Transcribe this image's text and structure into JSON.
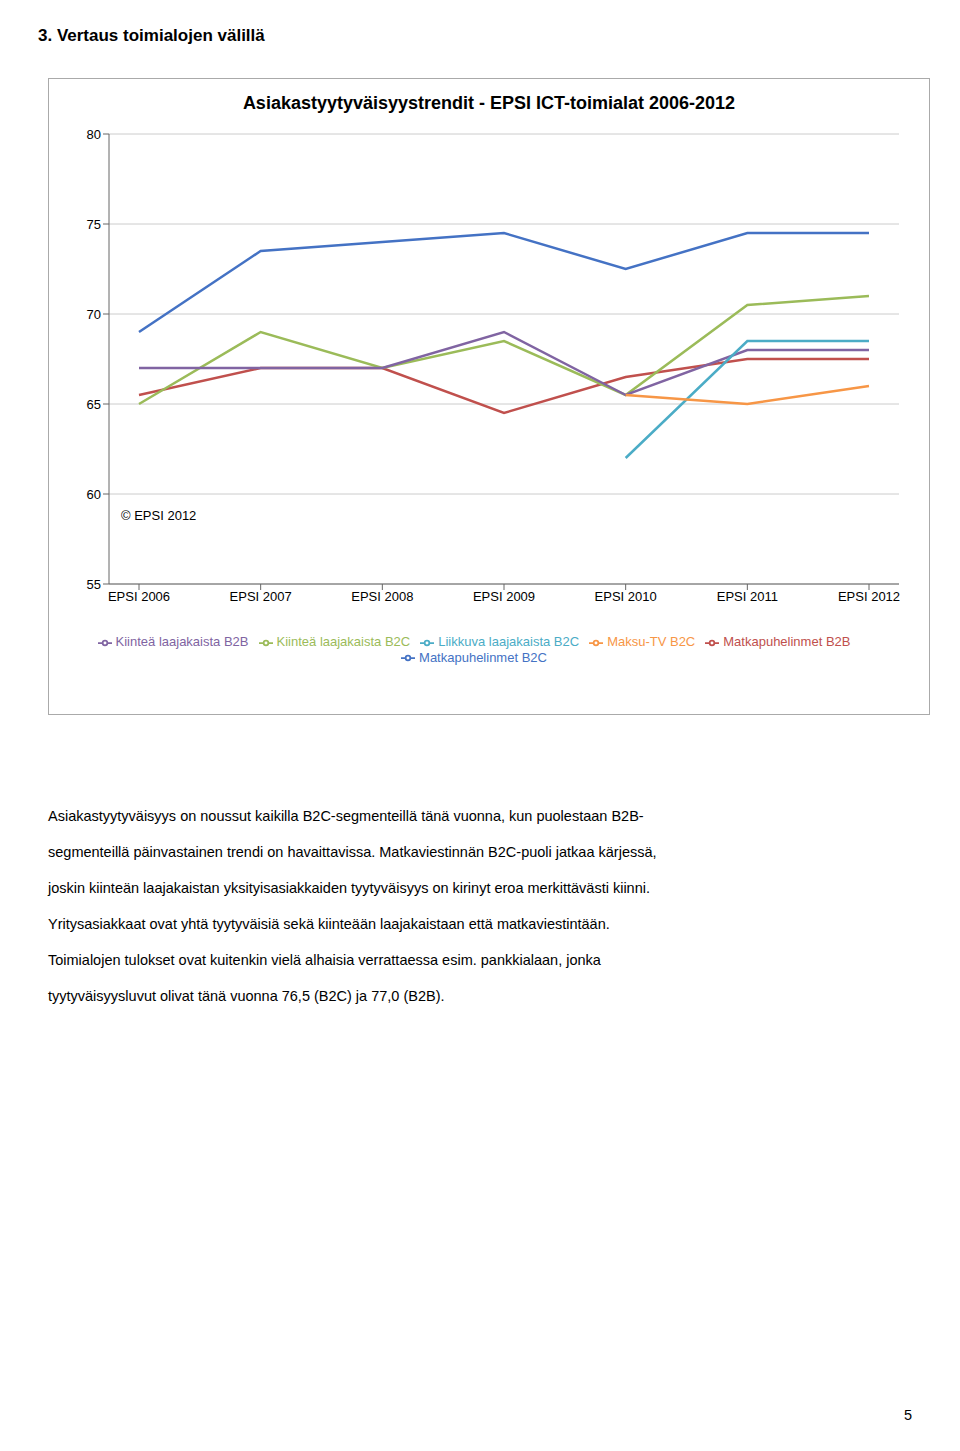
{
  "chart_data": {
    "type": "line",
    "title": "Asiakastyytyväisyystrendit - EPSI ICT-toimialat 2006-2012",
    "categories": [
      "EPSI 2006",
      "EPSI 2007",
      "EPSI 2008",
      "EPSI 2009",
      "EPSI 2010",
      "EPSI 2011",
      "EPSI 2012"
    ],
    "series": [
      {
        "name": "Matkapuhelinmet B2C",
        "color": "#4472C4",
        "values": [
          69.0,
          73.5,
          74.0,
          74.5,
          72.5,
          74.5,
          74.5
        ]
      },
      {
        "name": "Matkapuhelinmet B2B",
        "color": "#C0504D",
        "values": [
          65.5,
          67.0,
          67.0,
          64.5,
          66.5,
          67.5,
          67.5
        ]
      },
      {
        "name": "Kiinteä laajakaista B2C",
        "color": "#9BBB59",
        "values": [
          65.0,
          69.0,
          67.0,
          68.5,
          65.5,
          70.5,
          71.0
        ]
      },
      {
        "name": "Kiinteä laajakaista B2B",
        "color": "#8064A2",
        "values": [
          67.0,
          67.0,
          67.0,
          69.0,
          65.5,
          68.0,
          68.0
        ]
      },
      {
        "name": "Liikkuva laajakaista B2C",
        "color": "#4BACC6",
        "values": [
          null,
          null,
          null,
          null,
          62.0,
          68.5,
          68.5
        ]
      },
      {
        "name": "Maksu-TV B2C",
        "color": "#F79646",
        "values": [
          null,
          null,
          null,
          null,
          65.5,
          65.0,
          66.0
        ]
      }
    ],
    "ylim": [
      55,
      80
    ],
    "yticks": [
      55,
      60,
      65,
      70,
      75,
      80
    ],
    "grid": true,
    "legend": "bottom",
    "annotations": [
      "© EPSI 2012"
    ]
  },
  "section_header": "3.   Vertaus toimialojen välillä",
  "body_lines": [
    "Asiakastyytyväisyys on noussut kaikilla B2C-segmenteillä tänä vuonna, kun puolestaan B2B-",
    "segmenteillä päinvastainen trendi on havaittavissa. Matkaviestinnän B2C-puoli jatkaa kärjessä,",
    "joskin kiinteän laajakaistan yksityisasiakkaiden tyytyväisyys on kirinyt eroa merkittävästi kiinni.",
    "Yritysasiakkaat ovat yhtä tyytyväisiä sekä kiinteään laajakaistaan että matkaviestintään.",
    "Toimialojen tulokset ovat kuitenkin vielä alhaisia verrattaessa esim. pankkialaan, jonka",
    "tyytyväisyysluvut olivat tänä vuonna 76,5 (B2C) ja 77,0 (B2B)."
  ],
  "page_number": "5"
}
